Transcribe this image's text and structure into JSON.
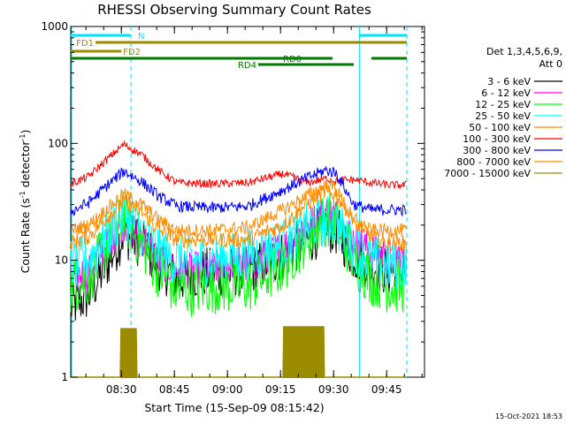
{
  "chart_data": {
    "type": "line",
    "title": "RHESSI Observing Summary Count Rates",
    "xlabel": "Start Time (15-Sep-09 08:15:42)",
    "ylabel_main": "Count Rate (s",
    "ylabel_exp1": "-1",
    "ylabel_mid": " detector",
    "ylabel_exp2": "-1",
    "ylabel_end": ")",
    "yscale": "log",
    "ylim": [
      1,
      1000
    ],
    "xlim_minutes": [
      0,
      100
    ],
    "y_ticks": [
      {
        "value": 1,
        "label": "1"
      },
      {
        "value": 10,
        "label": "10"
      },
      {
        "value": 100,
        "label": "100"
      },
      {
        "value": 1000,
        "label": "1000"
      }
    ],
    "x_ticks": [
      {
        "minute": 14.3,
        "label": "08:30"
      },
      {
        "minute": 29.3,
        "label": "08:45"
      },
      {
        "minute": 44.3,
        "label": "09:00"
      },
      {
        "minute": 59.3,
        "label": "09:15"
      },
      {
        "minute": 74.3,
        "label": "09:30"
      },
      {
        "minute": 89.3,
        "label": "09:45"
      }
    ],
    "legend_title_1": "Det 1,3,4,5,6,9,",
    "legend_title_2": "Att 0",
    "legend_placement": "right",
    "series": [
      {
        "name": "3 - 6 keV",
        "color": "#000000",
        "values": [
          [
            0,
            4
          ],
          [
            5,
            5
          ],
          [
            10,
            9
          ],
          [
            15,
            17
          ],
          [
            20,
            14
          ],
          [
            25,
            9
          ],
          [
            30,
            7
          ],
          [
            40,
            8
          ],
          [
            50,
            8
          ],
          [
            60,
            11
          ],
          [
            67,
            15
          ],
          [
            72,
            19
          ],
          [
            75,
            18
          ],
          [
            80,
            11
          ],
          [
            85,
            9
          ],
          [
            90,
            8
          ],
          [
            95,
            8
          ]
        ]
      },
      {
        "name": "6 - 12 keV",
        "color": "#ff00ff",
        "values": [
          [
            0,
            7
          ],
          [
            5,
            8
          ],
          [
            10,
            14
          ],
          [
            15,
            21
          ],
          [
            20,
            16
          ],
          [
            25,
            10
          ],
          [
            30,
            8
          ],
          [
            40,
            8.5
          ],
          [
            50,
            9
          ],
          [
            60,
            13
          ],
          [
            67,
            20
          ],
          [
            72,
            26
          ],
          [
            75,
            24
          ],
          [
            80,
            15
          ],
          [
            85,
            12
          ],
          [
            90,
            11
          ],
          [
            95,
            11
          ]
        ]
      },
      {
        "name": "12 - 25 keV",
        "color": "#00ff00",
        "values": [
          [
            0,
            6
          ],
          [
            5,
            7
          ],
          [
            10,
            13
          ],
          [
            15,
            23
          ],
          [
            20,
            14
          ],
          [
            25,
            8
          ],
          [
            30,
            5.5
          ],
          [
            40,
            6
          ],
          [
            50,
            6
          ],
          [
            60,
            9
          ],
          [
            67,
            16
          ],
          [
            72,
            23
          ],
          [
            75,
            22
          ],
          [
            80,
            10
          ],
          [
            85,
            7
          ],
          [
            90,
            6
          ],
          [
            95,
            6
          ]
        ]
      },
      {
        "name": "25 - 50 keV",
        "color": "#00ffff",
        "values": [
          [
            0,
            9
          ],
          [
            5,
            10
          ],
          [
            10,
            16
          ],
          [
            15,
            25
          ],
          [
            20,
            18
          ],
          [
            25,
            12
          ],
          [
            30,
            10
          ],
          [
            40,
            10
          ],
          [
            50,
            11
          ],
          [
            60,
            14
          ],
          [
            67,
            19
          ],
          [
            72,
            22
          ],
          [
            75,
            21
          ],
          [
            80,
            13
          ],
          [
            85,
            10
          ],
          [
            90,
            9
          ],
          [
            95,
            9
          ]
        ]
      },
      {
        "name": "50 - 100 keV",
        "color": "#ff8c00",
        "values": [
          [
            0,
            14
          ],
          [
            5,
            16
          ],
          [
            10,
            23
          ],
          [
            15,
            32
          ],
          [
            20,
            26
          ],
          [
            25,
            18
          ],
          [
            30,
            15
          ],
          [
            40,
            15
          ],
          [
            50,
            15
          ],
          [
            60,
            20
          ],
          [
            67,
            31
          ],
          [
            72,
            38
          ],
          [
            75,
            36
          ],
          [
            80,
            23
          ],
          [
            85,
            16
          ],
          [
            90,
            14
          ],
          [
            95,
            14
          ]
        ]
      },
      {
        "name": "100 - 300 keV",
        "color": "#ff0000",
        "values": [
          [
            0,
            45
          ],
          [
            5,
            52
          ],
          [
            10,
            72
          ],
          [
            15,
            98
          ],
          [
            20,
            80
          ],
          [
            25,
            58
          ],
          [
            30,
            46
          ],
          [
            40,
            45
          ],
          [
            50,
            46
          ],
          [
            60,
            55
          ],
          [
            67,
            46
          ],
          [
            72,
            50
          ],
          [
            75,
            48
          ],
          [
            80,
            49
          ],
          [
            85,
            46
          ],
          [
            90,
            44
          ],
          [
            95,
            44
          ]
        ]
      },
      {
        "name": "300 - 800 keV",
        "color": "#0000ff",
        "values": [
          [
            0,
            26
          ],
          [
            5,
            31
          ],
          [
            10,
            43
          ],
          [
            15,
            58
          ],
          [
            20,
            47
          ],
          [
            25,
            35
          ],
          [
            30,
            29
          ],
          [
            40,
            28
          ],
          [
            50,
            29
          ],
          [
            60,
            40
          ],
          [
            67,
            51
          ],
          [
            72,
            59
          ],
          [
            75,
            56
          ],
          [
            80,
            30
          ],
          [
            85,
            27
          ],
          [
            90,
            27
          ],
          [
            95,
            27
          ]
        ]
      },
      {
        "name": "800 - 7000 keV",
        "color": "#ff8c00",
        "values": [
          [
            0,
            18
          ],
          [
            5,
            20
          ],
          [
            10,
            27
          ],
          [
            15,
            37
          ],
          [
            20,
            30
          ],
          [
            25,
            22
          ],
          [
            30,
            18
          ],
          [
            40,
            18
          ],
          [
            50,
            19
          ],
          [
            60,
            27
          ],
          [
            67,
            36
          ],
          [
            72,
            44
          ],
          [
            75,
            42
          ],
          [
            80,
            20
          ],
          [
            85,
            18
          ],
          [
            90,
            18
          ],
          [
            95,
            18
          ]
        ]
      },
      {
        "name": "7000 - 15000 keV",
        "color": "#9a8b00",
        "values": [
          [
            0,
            1
          ],
          [
            14,
            1
          ],
          [
            14.2,
            2.6
          ],
          [
            18.5,
            2.6
          ],
          [
            18.7,
            1
          ],
          [
            60,
            1
          ],
          [
            60.2,
            2.7
          ],
          [
            71.5,
            2.7
          ],
          [
            71.7,
            1
          ],
          [
            95,
            1
          ]
        ]
      }
    ],
    "flags": [
      {
        "name": "N",
        "color": "#00e5ff",
        "segments": [
          [
            0,
            17
          ],
          [
            81.6,
            95
          ]
        ]
      },
      {
        "name": "FD1",
        "color": "#9a8b00",
        "segments": [
          [
            7,
            95
          ]
        ]
      },
      {
        "name": "FD2",
        "color": "#9a8b00",
        "segments": [
          [
            0,
            14.3
          ]
        ]
      },
      {
        "name": "RD0",
        "color": "#007a00",
        "segments": [
          [
            0,
            74
          ],
          [
            85,
            95
          ]
        ]
      },
      {
        "name": "RD4",
        "color": "#007a00",
        "segments": [
          [
            53,
            80
          ]
        ]
      }
    ],
    "grid": false,
    "timestamp": "15-Oct-2021 18:53"
  },
  "colors": {
    "axis": "#000000",
    "background": "#ffffff",
    "saa_line": "#00e5ff"
  }
}
